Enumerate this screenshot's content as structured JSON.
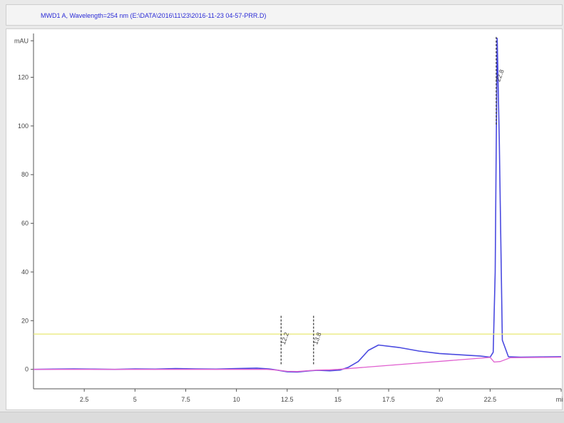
{
  "window": {
    "signal_title": "MWD1 A, Wavelength=254 nm (E:\\DATA\\2016\\11\\23\\2016-11-23 04-57-PRR.D)"
  },
  "chart_data": {
    "type": "line",
    "title": "MWD1 A, Wavelength=254 nm (E:\\DATA\\2016\\11\\23\\2016-11-23 04-57-PRR.D)",
    "xlabel": "min",
    "ylabel": "mAU",
    "xlim": [
      0,
      26
    ],
    "ylim": [
      -8,
      138
    ],
    "x_ticks": [
      {
        "value": 2.5,
        "label": "2.5"
      },
      {
        "value": 5,
        "label": "5"
      },
      {
        "value": 7.5,
        "label": "7.5"
      },
      {
        "value": 10,
        "label": "10"
      },
      {
        "value": 12.5,
        "label": "12.5"
      },
      {
        "value": 15,
        "label": "15"
      },
      {
        "value": 17.5,
        "label": "17.5"
      },
      {
        "value": 20,
        "label": "20"
      },
      {
        "value": 22.5,
        "label": "22.5"
      },
      {
        "value": 26,
        "label": "min"
      }
    ],
    "y_ticks": [
      {
        "value": 0,
        "label": "0"
      },
      {
        "value": 20,
        "label": "20"
      },
      {
        "value": 40,
        "label": "40"
      },
      {
        "value": 60,
        "label": "60"
      },
      {
        "value": 80,
        "label": "80"
      },
      {
        "value": 100,
        "label": "100"
      },
      {
        "value": 120,
        "label": "120"
      },
      {
        "value": 135,
        "label": "mAU"
      }
    ],
    "grid": false,
    "series": [
      {
        "color": "#4a4ae0",
        "x": [
          0,
          1,
          2,
          3,
          4,
          5,
          6,
          7,
          8,
          9,
          10,
          11,
          11.6,
          12,
          12.5,
          13,
          13.6,
          14,
          14.6,
          15.1,
          15.5,
          16,
          16.5,
          17,
          18,
          19,
          20,
          21,
          22,
          22.5,
          22.65,
          22.75,
          22.8,
          22.85,
          22.95,
          23.1,
          23.4,
          24,
          25,
          26
        ],
        "y": [
          0,
          0.1,
          0.2,
          0.1,
          0,
          0.2,
          0.1,
          0.3,
          0.2,
          0.1,
          0.3,
          0.5,
          0.2,
          -0.3,
          -1,
          -1.1,
          -0.6,
          -0.4,
          -0.6,
          -0.3,
          0.8,
          3.2,
          7.8,
          10,
          9,
          7.5,
          6.5,
          6,
          5.5,
          5,
          7,
          40,
          90,
          136,
          95,
          12,
          5.2,
          5,
          5.1,
          5.2
        ]
      },
      {
        "color": "#e060d0",
        "x": [
          0,
          11.5,
          12,
          12.5,
          13,
          13.6,
          14,
          14.6,
          15,
          22.5,
          22.7,
          23,
          23.5,
          26
        ],
        "y": [
          0,
          0,
          -0.3,
          -0.8,
          -0.9,
          -0.5,
          -0.3,
          -0.2,
          0,
          4.9,
          3,
          3.2,
          4.8,
          5
        ]
      },
      {
        "color": "#e8e870",
        "x": [
          0,
          26
        ],
        "y": [
          14.5,
          14.5
        ]
      }
    ],
    "peaks": [
      {
        "x": 12.2,
        "label": "12.2"
      },
      {
        "x": 13.8,
        "label": "13.8"
      },
      {
        "x": 22.8,
        "label": "22.8"
      }
    ]
  }
}
